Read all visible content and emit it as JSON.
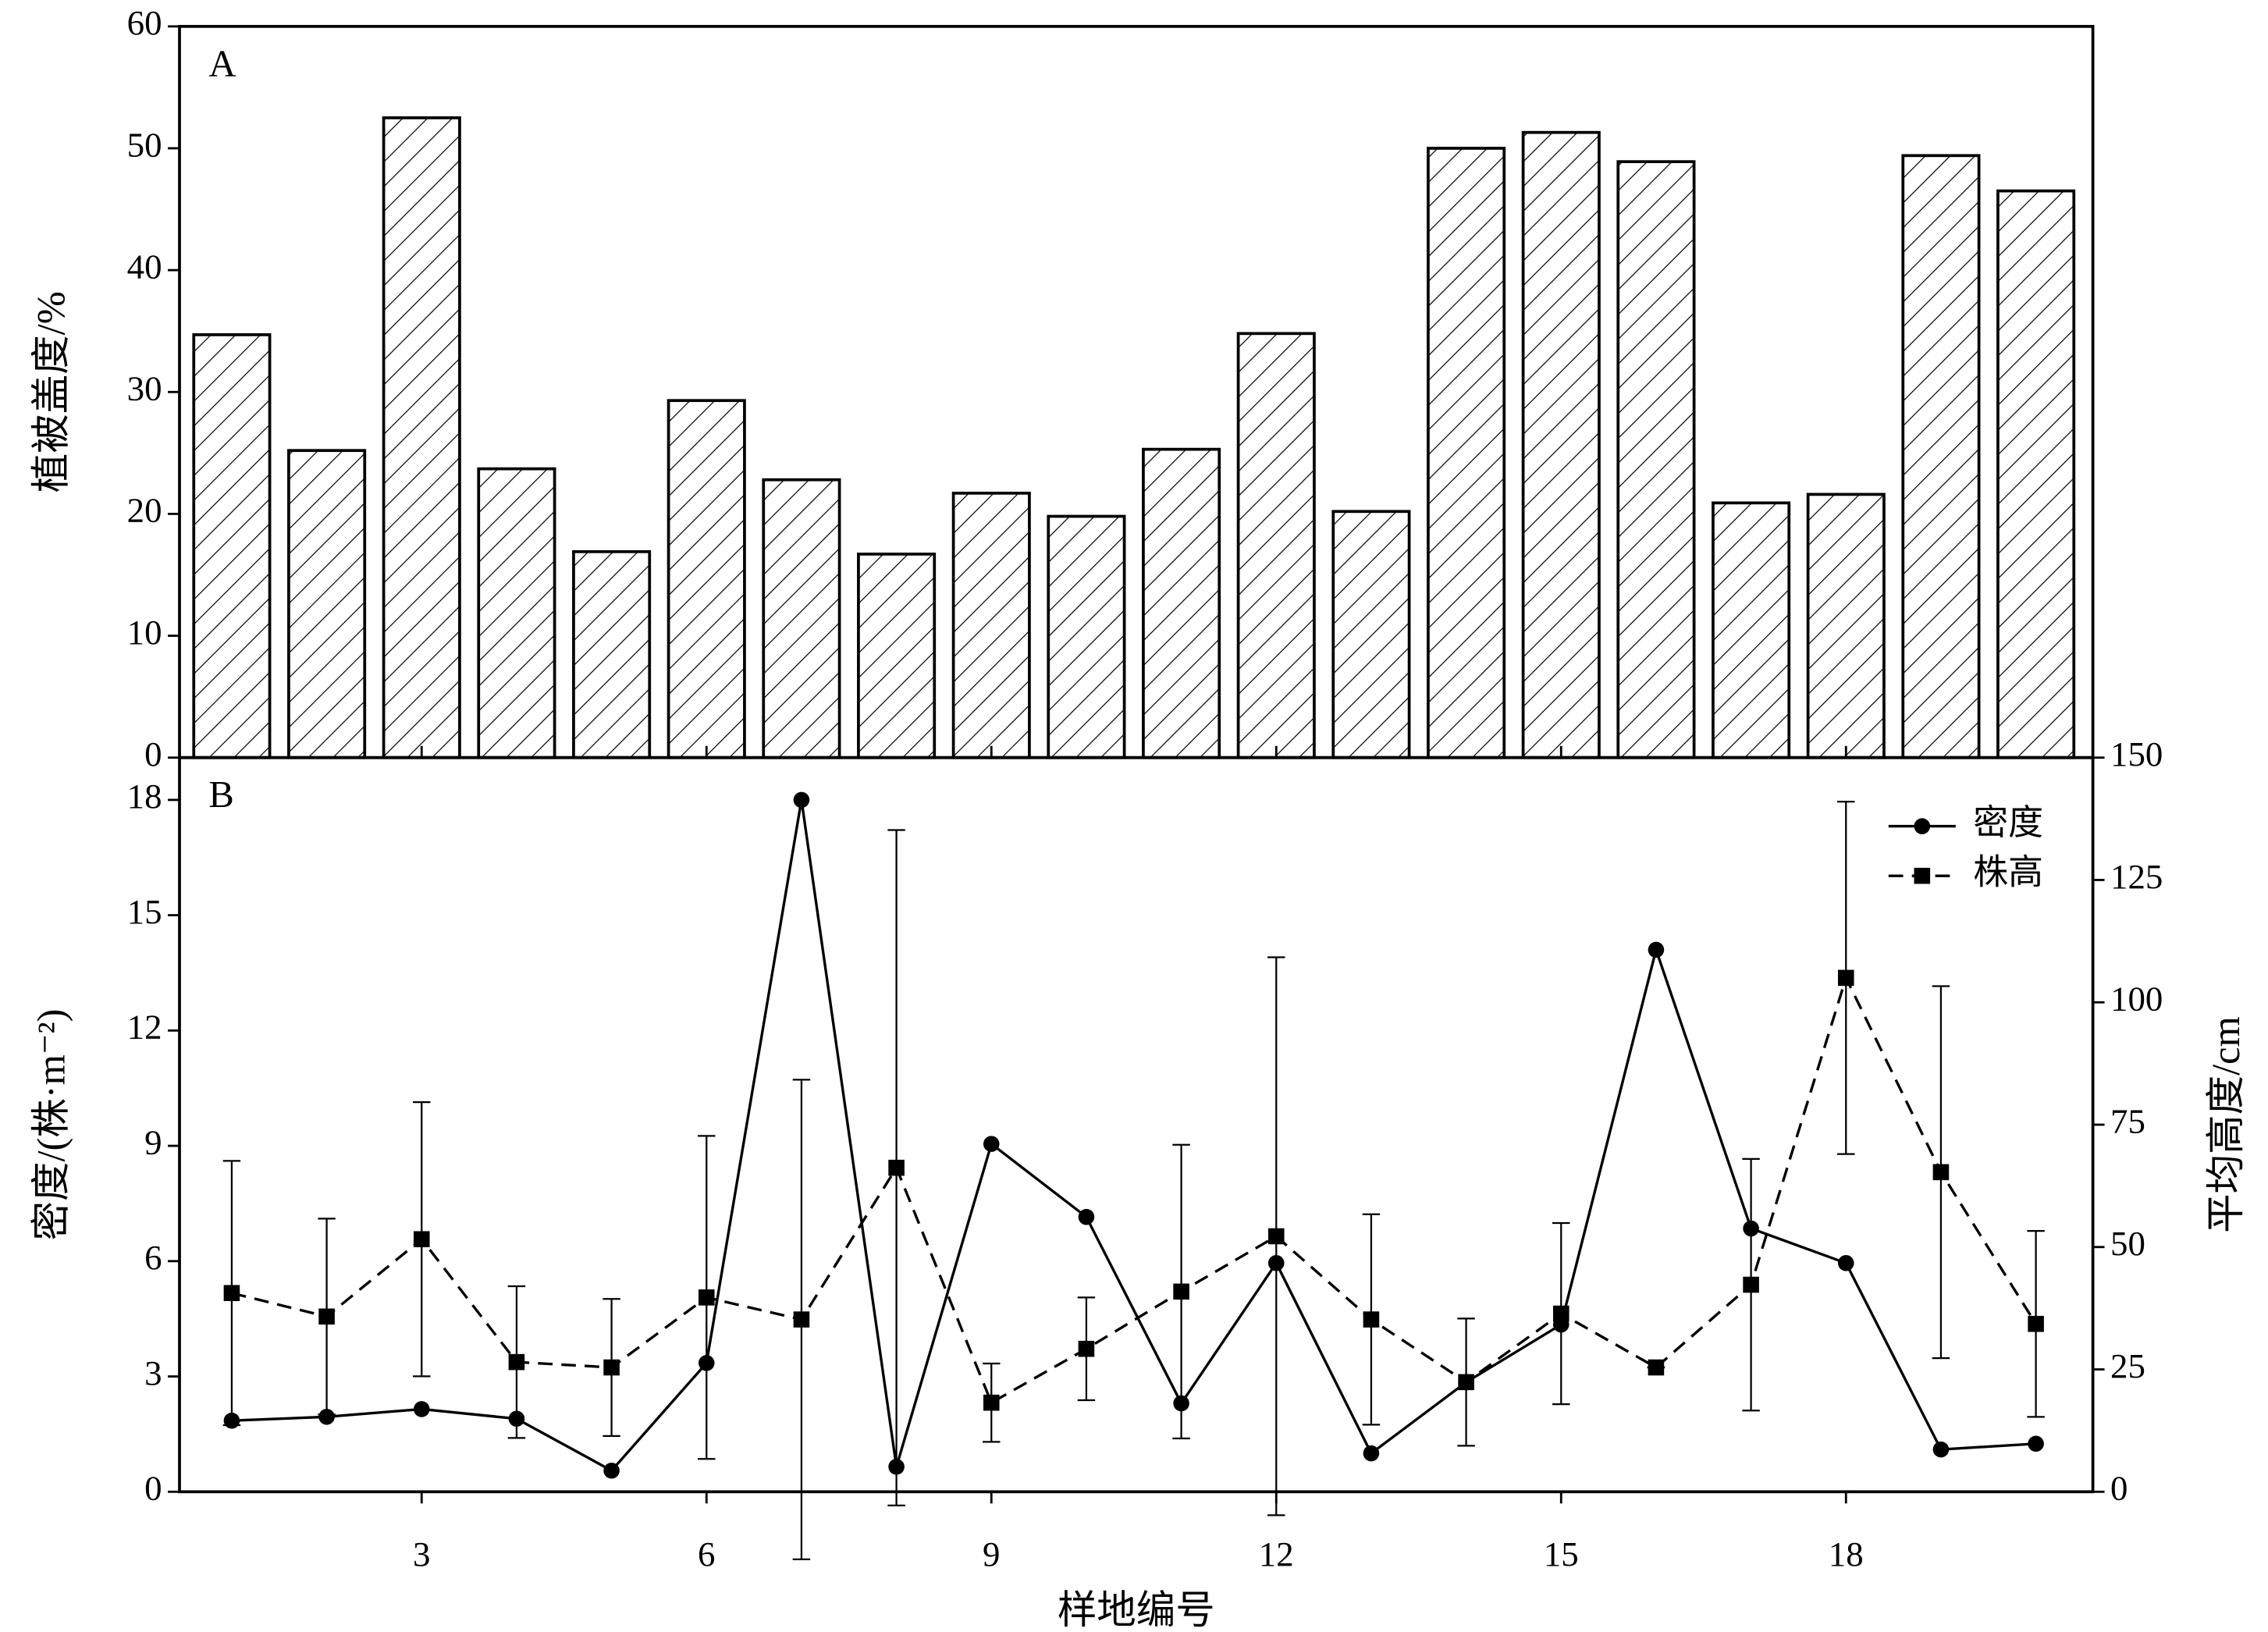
{
  "chart_data": [
    {
      "type": "bar",
      "title": "A",
      "ylabel": "植被盖度/%",
      "x": [
        1,
        2,
        3,
        4,
        5,
        6,
        7,
        8,
        9,
        10,
        11,
        12,
        13,
        14,
        15,
        16,
        17,
        18,
        19,
        20
      ],
      "values": [
        34.7,
        25.2,
        52.5,
        23.7,
        16.9,
        29.3,
        22.8,
        16.7,
        21.7,
        19.8,
        25.3,
        34.8,
        20.2,
        50.0,
        51.3,
        48.9,
        20.9,
        21.6,
        49.4,
        46.5
      ],
      "color": "#000000",
      "hatch": true,
      "xlim": [
        0.45,
        20.6
      ],
      "ylim": [
        0,
        60
      ],
      "yticks": [
        0,
        10,
        20,
        30,
        40,
        50,
        60
      ]
    },
    {
      "type": "line",
      "title": "B",
      "xlabel": "样地编号",
      "ylabel": "密度/(株·m⁻²)",
      "y2label": "平均高度/cm",
      "x": [
        1,
        2,
        3,
        4,
        5,
        6,
        7,
        8,
        9,
        10,
        11,
        12,
        13,
        14,
        15,
        16,
        17,
        18,
        19,
        20
      ],
      "series": [
        {
          "name": "密度",
          "color": "#000000",
          "marker": "circle",
          "dash": false,
          "values": [
            1.85,
            1.95,
            2.15,
            1.9,
            0.55,
            3.35,
            18.0,
            0.65,
            9.05,
            7.15,
            2.3,
            5.95,
            1.0,
            2.85,
            4.35,
            14.1,
            6.85,
            5.95,
            1.1,
            1.25
          ]
        },
        {
          "name": "株高",
          "color": "#000000",
          "marker": "square",
          "dash": true,
          "axis": "y2",
          "values": [
            40.6,
            35.8,
            51.6,
            26.5,
            25.4,
            39.7,
            35.2,
            66.2,
            18.2,
            29.2,
            40.9,
            52.2,
            35.2,
            22.4,
            36.4,
            25.4,
            42.3,
            105.0,
            65.3,
            34.3
          ],
          "errors": [
            27,
            20,
            28,
            15.5,
            14,
            33,
            49,
            69,
            8,
            10.5,
            30,
            57,
            21.5,
            13,
            18.5,
            0,
            25.7,
            36,
            38,
            19
          ]
        }
      ],
      "legend": "upper right",
      "xlim": [
        0.45,
        20.6
      ],
      "xticks": [
        3,
        6,
        9,
        12,
        15,
        18
      ],
      "ylim": [
        0,
        19.1
      ],
      "yticks": [
        0,
        3,
        6,
        9,
        12,
        15,
        18
      ],
      "y2lim": [
        0,
        150
      ],
      "y2ticks": [
        0,
        25,
        50,
        75,
        100,
        125,
        150
      ]
    }
  ]
}
